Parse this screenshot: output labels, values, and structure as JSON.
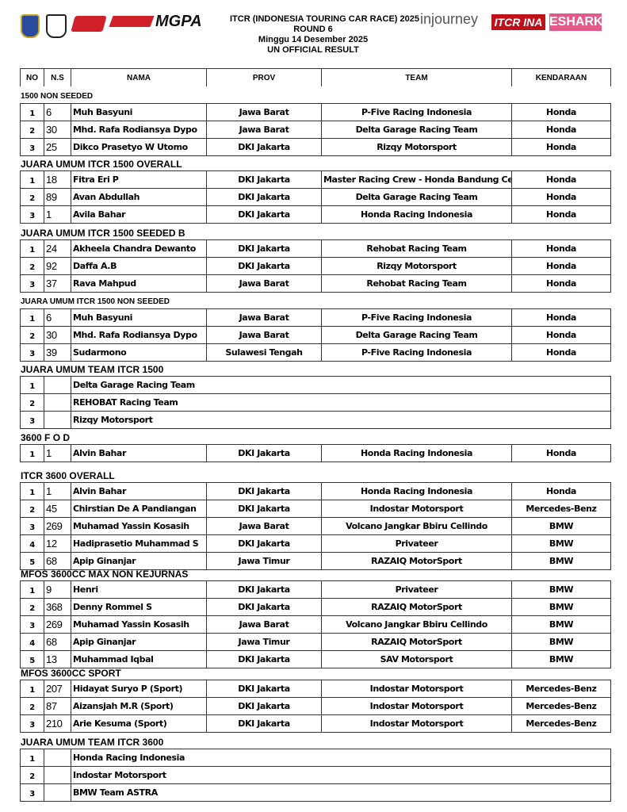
{
  "header": {
    "title": "ITCR (INDONESIA TOURING CAR RACE) 2025",
    "round": "ROUND 6",
    "date": "Minggu 14 Desember 2025",
    "status": "UN OFFICIAL RESULT"
  },
  "logos": [
    "IMI",
    "MGPA",
    "injourney",
    "ITCR INA",
    "ESHARK"
  ],
  "columns": [
    "NO",
    "N.S",
    "NAMA",
    "PROV",
    "TEAM",
    "KENDARAAN"
  ],
  "sections": [
    {
      "title": "1500 NON SEEDED",
      "rows": [
        [
          "1",
          "6",
          "Muh Basyuni",
          "Jawa Barat",
          "P-Five Racing Indonesia",
          "Honda"
        ],
        [
          "2",
          "30",
          "Mhd. Rafa Rodiansya Dypo",
          "Jawa Barat",
          "Delta Garage Racing Team",
          "Honda"
        ],
        [
          "3",
          "25",
          "Dikco Prasetyo W Utomo",
          "DKI Jakarta",
          "Rizqy Motorsport",
          "Honda"
        ]
      ]
    },
    {
      "title": "JUARA UMUM ITCR 1500 OVERALL",
      "rows": [
        [
          "1",
          "18",
          "Fitra Eri P",
          "DKI Jakarta",
          "Master Racing Crew - Honda Bandung Center",
          "Honda"
        ],
        [
          "2",
          "89",
          "Avan Abdullah",
          "DKI Jakarta",
          "Delta Garage Racing Team",
          "Honda"
        ],
        [
          "3",
          "1",
          "Avila Bahar",
          "DKI Jakarta",
          "Honda Racing Indonesia",
          "Honda"
        ]
      ]
    },
    {
      "title": "JUARA UMUM ITCR 1500 SEEDED B",
      "rows": [
        [
          "1",
          "24",
          "Akheela Chandra Dewanto",
          "DKI Jakarta",
          "Rehobat Racing Team",
          "Honda"
        ],
        [
          "2",
          "92",
          "Daffa A.B",
          "DKI Jakarta",
          "Rizqy Motorsport",
          "Honda"
        ],
        [
          "3",
          "37",
          "Rava Mahpud",
          "Jawa Barat",
          "Rehobat Racing Team",
          "Honda"
        ]
      ]
    },
    {
      "title": "JUARA UMUM ITCR 1500 NON SEEDED",
      "rows": [
        [
          "1",
          "6",
          "Muh Basyuni",
          "Jawa Barat",
          "P-Five Racing Indonesia",
          "Honda"
        ],
        [
          "2",
          "30",
          "Mhd. Rafa Rodiansya Dypo",
          "Jawa Barat",
          "Delta Garage Racing Team",
          "Honda"
        ],
        [
          "3",
          "39",
          "Sudarmono",
          "Sulawesi Tengah",
          "P-Five Racing Indonesia",
          "Honda"
        ]
      ]
    },
    {
      "title": "JUARA UMUM TEAM ITCR 1500",
      "team": true,
      "rows": [
        [
          "1",
          "Delta Garage Racing Team"
        ],
        [
          "2",
          "REHOBAT Racing Team"
        ],
        [
          "3",
          "Rizqy Motorsport"
        ]
      ]
    },
    {
      "title": "3600 F O D",
      "rows": [
        [
          "1",
          "1",
          "Alvin Bahar",
          "DKI Jakarta",
          "Honda Racing Indonesia",
          "Honda"
        ]
      ]
    },
    {
      "title": "ITCR 3600 OVERALL",
      "rows": [
        [
          "1",
          "1",
          "Alvin Bahar",
          "DKI Jakarta",
          "Honda Racing Indonesia",
          "Honda"
        ],
        [
          "2",
          "45",
          "Chirstian De A Pandiangan",
          "DKI Jakarta",
          "Indostar Motorsport",
          "Mercedes-Benz"
        ],
        [
          "3",
          "269",
          "Muhamad Yassin Kosasih",
          "Jawa Barat",
          "Volcano Jangkar Bbiru Cellindo",
          "BMW"
        ],
        [
          "4",
          "12",
          "Hadiprasetio Muhammad S",
          "DKI Jakarta",
          "Privateer",
          "BMW"
        ],
        [
          "5",
          "68",
          "Apip Ginanjar",
          "Jawa Timur",
          "RAZAIQ MotorSport",
          "BMW"
        ]
      ]
    },
    {
      "title": "MFOS 3600CC MAX NON KEJURNAS",
      "rows": [
        [
          "1",
          "9",
          "Henri",
          "DKI Jakarta",
          "Privateer",
          "BMW"
        ],
        [
          "2",
          "368",
          "Denny Rommel S",
          "DKI Jakarta",
          "RAZAIQ MotorSport",
          "BMW"
        ],
        [
          "3",
          "269",
          "Muhamad Yassin Kosasih",
          "Jawa Barat",
          "Volcano Jangkar Bbiru Cellindo",
          "BMW"
        ],
        [
          "4",
          "68",
          "Apip Ginanjar",
          "Jawa Timur",
          "RAZAIQ MotorSport",
          "BMW"
        ],
        [
          "5",
          "13",
          "Muhammad Iqbal",
          "DKI Jakarta",
          "SAV Motorsport",
          "BMW"
        ]
      ]
    },
    {
      "title": "MFOS 3600CC SPORT",
      "rows": [
        [
          "1",
          "207",
          "Hidayat Suryo P  (Sport)",
          "DKI Jakarta",
          "Indostar Motorsport",
          "Mercedes-Benz"
        ],
        [
          "2",
          "87",
          "Aizansjah M.R (Sport)",
          "DKI Jakarta",
          "Indostar Motorsport",
          "Mercedes-Benz"
        ],
        [
          "3",
          "210",
          "Arie Kesuma (Sport)",
          "DKI Jakarta",
          "Indostar Motorsport",
          "Mercedes-Benz"
        ]
      ]
    },
    {
      "title": "JUARA UMUM TEAM ITCR 3600",
      "team": true,
      "rows": [
        [
          "1",
          "Honda Racing Indonesia"
        ],
        [
          "2",
          "Indostar Motorsport"
        ],
        [
          "3",
          "BMW Team ASTRA"
        ]
      ]
    }
  ]
}
